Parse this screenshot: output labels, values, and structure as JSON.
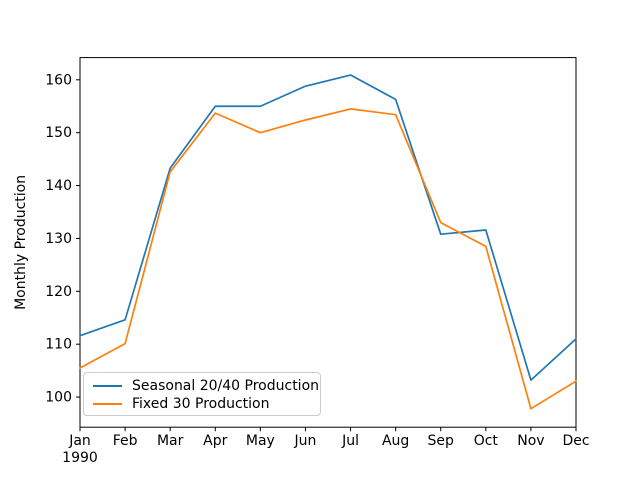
{
  "figure": {
    "background": "#ffffff",
    "spine_color": "#000000",
    "tick_color": "#000000"
  },
  "chart_data": {
    "type": "line",
    "title": "",
    "xlabel": "",
    "ylabel": "Monthly Production",
    "x": [
      "Jan",
      "Feb",
      "Mar",
      "Apr",
      "May",
      "Jun",
      "Jul",
      "Aug",
      "Sep",
      "Oct",
      "Nov",
      "Dec"
    ],
    "x_period_label": "1990",
    "yticks": [
      100,
      110,
      120,
      130,
      140,
      150,
      160
    ],
    "ylim": [
      94.3,
      164.2
    ],
    "grid": false,
    "legend_position": "lower-left",
    "series": [
      {
        "name": "Seasonal 20/40 Production",
        "color": "#1f77b4",
        "values": [
          111.6,
          114.6,
          143.3,
          155.0,
          155.0,
          158.8,
          160.9,
          156.3,
          130.8,
          131.6,
          103.2,
          111.0
        ]
      },
      {
        "name": "Fixed 30 Production",
        "color": "#ff7f0e",
        "values": [
          105.5,
          110.1,
          142.6,
          153.7,
          150.0,
          152.4,
          154.5,
          153.4,
          133.0,
          128.5,
          97.8,
          103.0
        ]
      }
    ]
  }
}
